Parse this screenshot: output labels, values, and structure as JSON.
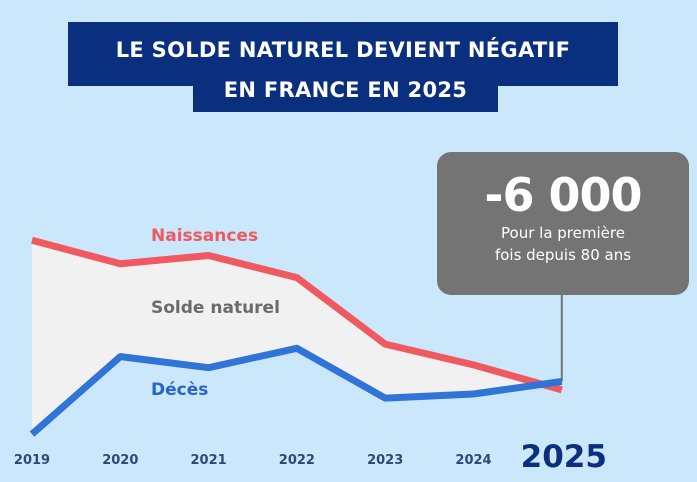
{
  "title": {
    "line1": "LE SOLDE NATUREL DEVIENT NÉGATIF",
    "line2": "EN FRANCE EN 2025"
  },
  "callout": {
    "value": "-6 000",
    "line1": "Pour la première",
    "line2": "fois depuis 80 ans"
  },
  "colors": {
    "background": "#cbe7fb",
    "title_bg": "#0b2f7f",
    "births": "#f0595f",
    "deaths": "#2f74d6",
    "gap_fill": "#f1f1f1",
    "callout_bg": "#747474",
    "axis_text": "#2b4a7a"
  },
  "chart_data": {
    "type": "line",
    "categories": [
      "2019",
      "2020",
      "2021",
      "2022",
      "2023",
      "2024",
      "2025"
    ],
    "series": [
      {
        "name": "Naissances",
        "values": [
          753,
          736,
          742,
          726,
          678,
          663,
          645
        ]
      },
      {
        "name": "Décès",
        "values": [
          613,
          669,
          661,
          675,
          639,
          642,
          651
        ]
      }
    ],
    "area_label": "Solde naturel",
    "highlight_category": "2025",
    "ylim": [
      590,
      790
    ],
    "grid": false,
    "legend": "inline labels"
  }
}
